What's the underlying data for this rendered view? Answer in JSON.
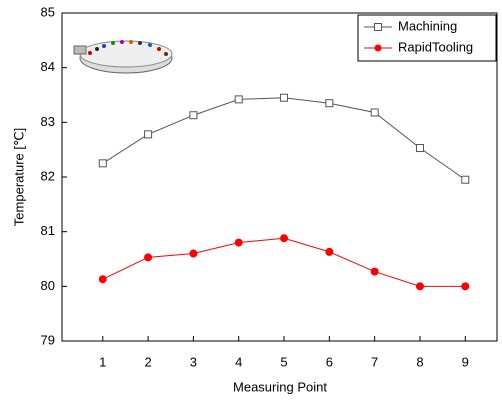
{
  "chart_data": {
    "type": "line",
    "x_label": "Measuring Point",
    "y_label": "Temperature [℃]",
    "x": [
      1,
      2,
      3,
      4,
      5,
      6,
      7,
      8,
      9
    ],
    "series": [
      {
        "name": "Machining",
        "color": "#555555",
        "marker": "open-square",
        "values": [
          82.25,
          82.78,
          83.13,
          83.42,
          83.45,
          83.35,
          83.18,
          82.53,
          81.95
        ]
      },
      {
        "name": "RapidTooling",
        "color": "#ff0000",
        "marker": "filled-circle",
        "values": [
          80.13,
          80.53,
          80.6,
          80.8,
          80.88,
          80.63,
          80.27,
          80.0,
          80.0
        ]
      }
    ],
    "xlim": [
      0.1,
      9.7
    ],
    "xticks": [
      1,
      2,
      3,
      4,
      5,
      6,
      7,
      8,
      9
    ],
    "ylim": [
      79,
      85
    ],
    "yticks": [
      79,
      80,
      81,
      82,
      83,
      84,
      85
    ],
    "legend": "upper right",
    "grid": false
  }
}
